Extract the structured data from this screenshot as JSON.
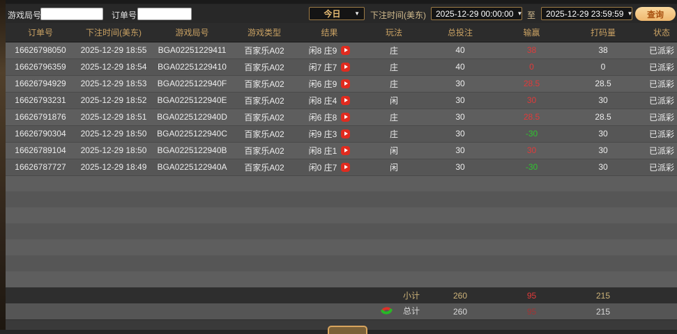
{
  "toolbar": {
    "game_round_label": "游戏局号",
    "order_no_label": "订单号",
    "game_round_value": "",
    "order_no_value": "",
    "period_select": "今日",
    "bet_time_label": "下注时间(美东)",
    "start_time": "2025-12-29 00:00:00",
    "to_label": "至",
    "end_time": "2025-12-29 23:59:59",
    "query_button": "查询"
  },
  "icons": {
    "dropdown_arrow": "▼"
  },
  "colors": {
    "header_gold": "#c9a163",
    "win_red": "#e03a3a",
    "loss_green": "#2fc42f",
    "query_btn_bg": "#f2c184",
    "query_btn_text": "#a8500f"
  },
  "table": {
    "headers": [
      "订单号",
      "下注时间(美东)",
      "游戏局号",
      "游戏类型",
      "结果",
      "玩法",
      "总投注",
      "输赢",
      "打码量",
      "状态"
    ],
    "rows": [
      {
        "order_id": "16626798050",
        "bet_time": "2025-12-29 18:55",
        "round_id": "BGA02251229411",
        "game_type": "百家乐A02",
        "result": "闲8 庄9",
        "play": "庄",
        "total_bet": "40",
        "win_loss": "38",
        "turnover": "38",
        "status": "已派彩"
      },
      {
        "order_id": "16626796359",
        "bet_time": "2025-12-29 18:54",
        "round_id": "BGA02251229410",
        "game_type": "百家乐A02",
        "result": "闲7 庄7",
        "play": "庄",
        "total_bet": "40",
        "win_loss": "0",
        "turnover": "0",
        "status": "已派彩"
      },
      {
        "order_id": "16626794929",
        "bet_time": "2025-12-29 18:53",
        "round_id": "BGA0225122940F",
        "game_type": "百家乐A02",
        "result": "闲6 庄9",
        "play": "庄",
        "total_bet": "30",
        "win_loss": "28.5",
        "turnover": "28.5",
        "status": "已派彩"
      },
      {
        "order_id": "16626793231",
        "bet_time": "2025-12-29 18:52",
        "round_id": "BGA0225122940E",
        "game_type": "百家乐A02",
        "result": "闲8 庄4",
        "play": "闲",
        "total_bet": "30",
        "win_loss": "30",
        "turnover": "30",
        "status": "已派彩"
      },
      {
        "order_id": "16626791876",
        "bet_time": "2025-12-29 18:51",
        "round_id": "BGA0225122940D",
        "game_type": "百家乐A02",
        "result": "闲6 庄8",
        "play": "庄",
        "total_bet": "30",
        "win_loss": "28.5",
        "turnover": "28.5",
        "status": "已派彩"
      },
      {
        "order_id": "16626790304",
        "bet_time": "2025-12-29 18:50",
        "round_id": "BGA0225122940C",
        "game_type": "百家乐A02",
        "result": "闲9 庄3",
        "play": "庄",
        "total_bet": "30",
        "win_loss": "-30",
        "turnover": "30",
        "status": "已派彩"
      },
      {
        "order_id": "16626789104",
        "bet_time": "2025-12-29 18:50",
        "round_id": "BGA0225122940B",
        "game_type": "百家乐A02",
        "result": "闲8 庄1",
        "play": "闲",
        "total_bet": "30",
        "win_loss": "30",
        "turnover": "30",
        "status": "已派彩"
      },
      {
        "order_id": "16626787727",
        "bet_time": "2025-12-29 18:49",
        "round_id": "BGA0225122940A",
        "game_type": "百家乐A02",
        "result": "闲0 庄7",
        "play": "闲",
        "total_bet": "30",
        "win_loss": "-30",
        "turnover": "30",
        "status": "已派彩"
      }
    ],
    "filler_row_count": 7,
    "subtotal": {
      "label": "小计",
      "total_bet": "260",
      "win_loss": "95",
      "turnover": "215"
    },
    "grand_total": {
      "label": "总计",
      "total_bet": "260",
      "win_loss": "95",
      "turnover": "215"
    }
  }
}
